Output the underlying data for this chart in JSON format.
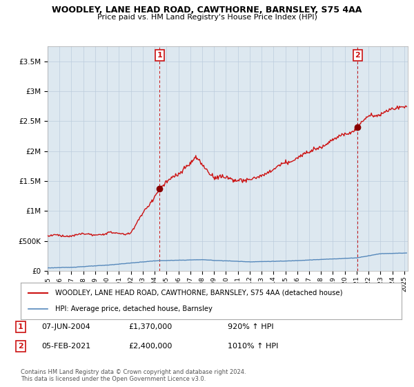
{
  "title": "WOODLEY, LANE HEAD ROAD, CAWTHORNE, BARNSLEY, S75 4AA",
  "subtitle": "Price paid vs. HM Land Registry's House Price Index (HPI)",
  "legend_label_red": "WOODLEY, LANE HEAD ROAD, CAWTHORNE, BARNSLEY, S75 4AA (detached house)",
  "legend_label_blue": "HPI: Average price, detached house, Barnsley",
  "annotation1_label": "1",
  "annotation1_date": "07-JUN-2004",
  "annotation1_price": "£1,370,000",
  "annotation1_hpi": "920% ↑ HPI",
  "annotation2_label": "2",
  "annotation2_date": "05-FEB-2021",
  "annotation2_price": "£2,400,000",
  "annotation2_hpi": "1010% ↑ HPI",
  "footnote": "Contains HM Land Registry data © Crown copyright and database right 2024.\nThis data is licensed under the Open Government Licence v3.0.",
  "ylim_max": 3750000,
  "yticks": [
    0,
    500000,
    1000000,
    1500000,
    2000000,
    2500000,
    3000000,
    3500000
  ],
  "ytick_labels": [
    "£0",
    "£500K",
    "£1M",
    "£1.5M",
    "£2M",
    "£2.5M",
    "£3M",
    "£3.5M"
  ],
  "hpi_color": "#5588bb",
  "price_color": "#cc1111",
  "dot_color": "#880000",
  "annotation_color": "#cc1111",
  "background_color": "#ffffff",
  "chart_bg_color": "#dde8f0",
  "grid_color": "#bbccdd",
  "sale1_x": 2004.43,
  "sale1_y": 1370000,
  "sale2_x": 2021.09,
  "sale2_y": 2400000,
  "xmin": 1995,
  "xmax": 2025.3
}
